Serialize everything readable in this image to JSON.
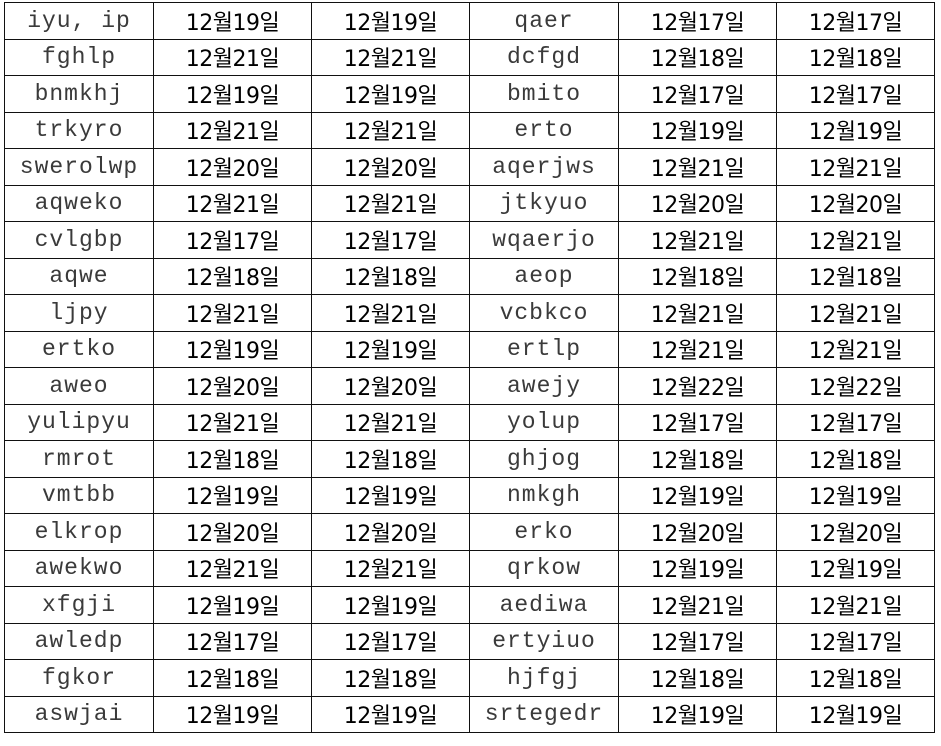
{
  "rows": [
    [
      "iyu, ip",
      "12월19일",
      "12월19일",
      "qaer",
      "12월17일",
      "12월17일"
    ],
    [
      "fghlp",
      "12월21일",
      "12월21일",
      "dcfgd",
      "12월18일",
      "12월18일"
    ],
    [
      "bnmkhj",
      "12월19일",
      "12월19일",
      "bmito",
      "12월17일",
      "12월17일"
    ],
    [
      "trkyro",
      "12월21일",
      "12월21일",
      "erto",
      "12월19일",
      "12월19일"
    ],
    [
      "swerolwp",
      "12월20일",
      "12월20일",
      "aqerjws",
      "12월21일",
      "12월21일"
    ],
    [
      "aqweko",
      "12월21일",
      "12월21일",
      "jtkyuo",
      "12월20일",
      "12월20일"
    ],
    [
      "cvlgbp",
      "12월17일",
      "12월17일",
      "wqaerjo",
      "12월21일",
      "12월21일"
    ],
    [
      "aqwe",
      "12월18일",
      "12월18일",
      "aeop",
      "12월18일",
      "12월18일"
    ],
    [
      "ljpy",
      "12월21일",
      "12월21일",
      "vcbkco",
      "12월21일",
      "12월21일"
    ],
    [
      "ertko",
      "12월19일",
      "12월19일",
      "ertlp",
      "12월21일",
      "12월21일"
    ],
    [
      "aweo",
      "12월20일",
      "12월20일",
      "awejy",
      "12월22일",
      "12월22일"
    ],
    [
      "yulipyu",
      "12월21일",
      "12월21일",
      "yolup",
      "12월17일",
      "12월17일"
    ],
    [
      "rmrot",
      "12월18일",
      "12월18일",
      "ghjog",
      "12월18일",
      "12월18일"
    ],
    [
      "vmtbb",
      "12월19일",
      "12월19일",
      "nmkgh",
      "12월19일",
      "12월19일"
    ],
    [
      "elkrop",
      "12월20일",
      "12월20일",
      "erko",
      "12월20일",
      "12월20일"
    ],
    [
      "awekwo",
      "12월21일",
      "12월21일",
      "qrkow",
      "12월19일",
      "12월19일"
    ],
    [
      "xfgji",
      "12월19일",
      "12월19일",
      "aediwa",
      "12월21일",
      "12월21일"
    ],
    [
      "awledp",
      "12월17일",
      "12월17일",
      "ertyiuo",
      "12월17일",
      "12월17일"
    ],
    [
      "fgkor",
      "12월18일",
      "12월18일",
      "hjfgj",
      "12월18일",
      "12월18일"
    ],
    [
      "aswjai",
      "12월19일",
      "12월19일",
      "srtegedr",
      "12월19일",
      "12월19일"
    ]
  ]
}
